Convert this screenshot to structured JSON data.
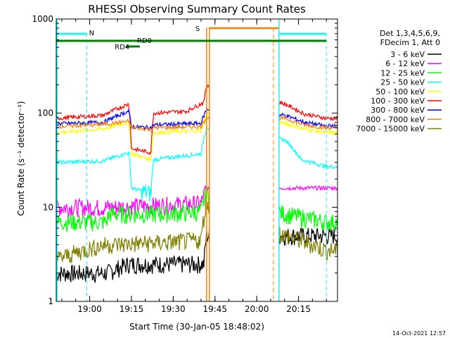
{
  "chart_data": {
    "type": "line",
    "title": "RHESSI Observing Summary Count Rates",
    "xlabel": "Start Time (30-Jan-05 18:48:02)",
    "ylabel": "Count Rate (s⁻¹ detector⁻¹)",
    "yscale": "log",
    "ylim": [
      1,
      1000
    ],
    "xlim": [
      "18:48",
      "20:29"
    ],
    "x_ticks": [
      "19:00",
      "19:15",
      "19:30",
      "19:45",
      "20:00",
      "20:15"
    ],
    "y_ticks": [
      "1",
      "10",
      "100",
      "1000"
    ],
    "legend_header": [
      "Det 1,3,4,5,6,9,",
      "FDecim 1, Att 0"
    ],
    "legend_position": "right",
    "series": [
      {
        "name": "3 - 6 keV",
        "color": "#000000",
        "points": [
          [
            "19:06",
            2
          ],
          [
            "19:14",
            2.5
          ],
          [
            "19:20",
            2.5
          ],
          [
            "19:30",
            2.5
          ],
          [
            "19:41",
            2.5
          ],
          [
            "19:42",
            5
          ]
        ]
      },
      {
        "name": "6 - 12 keV",
        "color": "#ff00ff",
        "points": [
          [
            "19:06",
            10
          ],
          [
            "19:25",
            10.5
          ],
          [
            "19:40",
            11
          ],
          [
            "19:42",
            16
          ]
        ]
      },
      {
        "name": "12 - 25 keV",
        "color": "#00ff00",
        "points": [
          [
            "18:48",
            7
          ],
          [
            "19:06",
            7
          ],
          [
            "19:07",
            8.5
          ],
          [
            "19:25",
            8.5
          ],
          [
            "19:40",
            9
          ],
          [
            "19:42",
            14
          ],
          [
            "20:10",
            8.5
          ],
          [
            "20:25",
            7
          ]
        ]
      },
      {
        "name": "25 - 50 keV",
        "color": "#00ffff",
        "points": [
          [
            "18:48",
            30
          ],
          [
            "19:05",
            31
          ],
          [
            "19:14",
            38
          ],
          [
            "19:15",
            16
          ],
          [
            "19:22",
            14
          ],
          [
            "19:23",
            32
          ],
          [
            "19:40",
            37
          ],
          [
            "19:42",
            70
          ],
          [
            "20:10",
            52
          ],
          [
            "20:16",
            32
          ],
          [
            "20:25",
            27
          ]
        ]
      },
      {
        "name": "50 - 100 keV",
        "color": "#ffff00",
        "points": [
          [
            "18:48",
            62
          ],
          [
            "19:05",
            68
          ],
          [
            "19:14",
            80
          ],
          [
            "19:15",
            37
          ],
          [
            "19:22",
            32
          ],
          [
            "19:23",
            62
          ],
          [
            "19:40",
            65
          ],
          [
            "19:42",
            100
          ],
          [
            "20:10",
            78
          ],
          [
            "20:17",
            68
          ],
          [
            "20:25",
            62
          ]
        ]
      },
      {
        "name": "100 - 300 keV",
        "color": "#ff0000",
        "points": [
          [
            "18:48",
            88
          ],
          [
            "19:05",
            95
          ],
          [
            "19:14",
            125
          ],
          [
            "19:15",
            42
          ],
          [
            "19:22",
            38
          ],
          [
            "19:23",
            100
          ],
          [
            "19:35",
            105
          ],
          [
            "19:41",
            130
          ],
          [
            "19:42",
            200
          ],
          [
            "20:10",
            125
          ],
          [
            "20:17",
            98
          ],
          [
            "20:25",
            88
          ]
        ]
      },
      {
        "name": "300 - 800 keV",
        "color": "#0000ff",
        "points": [
          [
            "18:48",
            77
          ],
          [
            "19:05",
            80
          ],
          [
            "19:14",
            105
          ],
          [
            "19:15",
            72
          ],
          [
            "19:22",
            70
          ],
          [
            "19:23",
            75
          ],
          [
            "19:40",
            78
          ],
          [
            "19:42",
            110
          ],
          [
            "20:10",
            95
          ],
          [
            "20:17",
            80
          ],
          [
            "20:25",
            73
          ]
        ]
      },
      {
        "name": "800 - 7000 keV",
        "color": "#ff8000",
        "points": [
          [
            "18:48",
            72
          ],
          [
            "19:05",
            76
          ],
          [
            "19:14",
            82
          ],
          [
            "19:15",
            70
          ],
          [
            "19:22",
            67
          ],
          [
            "19:23",
            70
          ],
          [
            "19:40",
            72
          ],
          [
            "19:42",
            90
          ],
          [
            "20:10",
            88
          ],
          [
            "20:17",
            75
          ],
          [
            "20:25",
            70
          ]
        ]
      },
      {
        "name": "7000 - 15000 keV",
        "color": "#808000",
        "points": [
          [
            "18:48",
            2.8
          ],
          [
            "19:05",
            4
          ],
          [
            "19:25",
            4.2
          ],
          [
            "19:40",
            4.5
          ],
          [
            "19:42",
            11
          ],
          [
            "20:10",
            5
          ],
          [
            "20:25",
            3.5
          ]
        ]
      }
    ],
    "annotations": [
      {
        "text": "N",
        "color": "#00ffff",
        "x": "18:59"
      },
      {
        "text": "S",
        "color": "#ff8000",
        "x": "19:42"
      },
      {
        "text": "RD0",
        "color": "#008000",
        "x": "19:15"
      },
      {
        "text": "RD4",
        "color": "#008000",
        "x": "19:10"
      }
    ],
    "timestamp": "14-Oct-2021 12:57"
  }
}
